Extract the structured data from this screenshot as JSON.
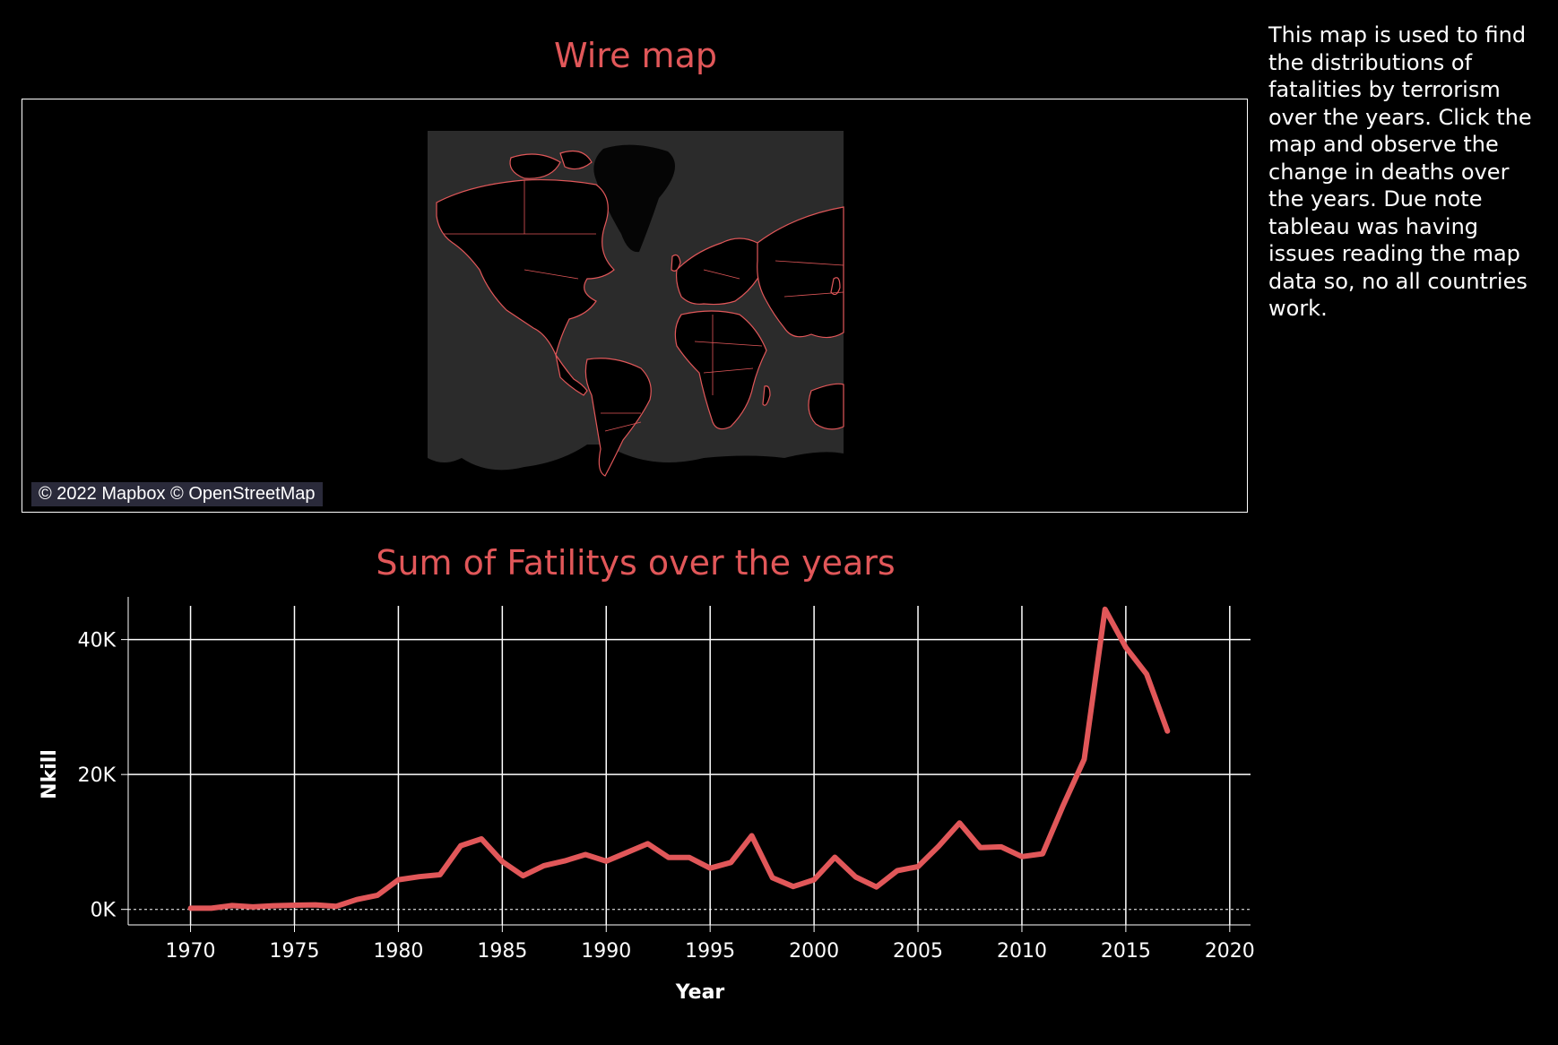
{
  "map": {
    "title": "Wire map",
    "credit": "© 2022 Mapbox © OpenStreetMap"
  },
  "description": "This map is used to find the distributions of fatalities by terrorism over the years. Click the map and observe the change in deaths over the years. Due note tableau was having issues reading the map data so, no all countries work.",
  "colors": {
    "accent": "#e15759",
    "background": "#000000",
    "map_land": "#2b2b2b",
    "grid": "#ffffff"
  },
  "chart_data": {
    "type": "line",
    "title": "Sum of Fatilitys over the years",
    "xlabel": "Year",
    "ylabel": "Nkill",
    "xlim": [
      1967,
      2021
    ],
    "ylim": [
      -2300,
      45000
    ],
    "x_ticks": [
      1970,
      1975,
      1980,
      1985,
      1990,
      1995,
      2000,
      2005,
      2010,
      2015,
      2020
    ],
    "y_ticks": [
      0,
      20000,
      40000
    ],
    "y_tick_labels": [
      "0K",
      "20K",
      "40K"
    ],
    "grid": true,
    "series": [
      {
        "x": [
          1970,
          1971,
          1972,
          1973,
          1974,
          1975,
          1976,
          1977,
          1978,
          1979,
          1980,
          1981,
          1982,
          1983,
          1984,
          1985,
          1986,
          1987,
          1988,
          1989,
          1990,
          1991,
          1992,
          1993,
          1994,
          1995,
          1996,
          1997,
          1998,
          1999,
          2000,
          2001,
          2002,
          2003,
          2004,
          2005,
          2006,
          2007,
          2008,
          2009,
          2010,
          2011,
          2012,
          2013,
          2014,
          2015,
          2016,
          2017
        ],
        "values": [
          174,
          173,
          566,
          370,
          539,
          617,
          674,
          456,
          1459,
          2100,
          4400,
          4851,
          5136,
          9444,
          10450,
          7094,
          4976,
          6482,
          7189,
          8136,
          7148,
          8429,
          9742,
          7690,
          7690,
          6104,
          6966,
          10924,
          4688,
          3393,
          4403,
          7729,
          4805,
          3317,
          5743,
          6331,
          9380,
          12824,
          9157,
          9273,
          7827,
          8246,
          15497,
          22273,
          44490,
          38853,
          34871,
          26445
        ]
      }
    ]
  }
}
